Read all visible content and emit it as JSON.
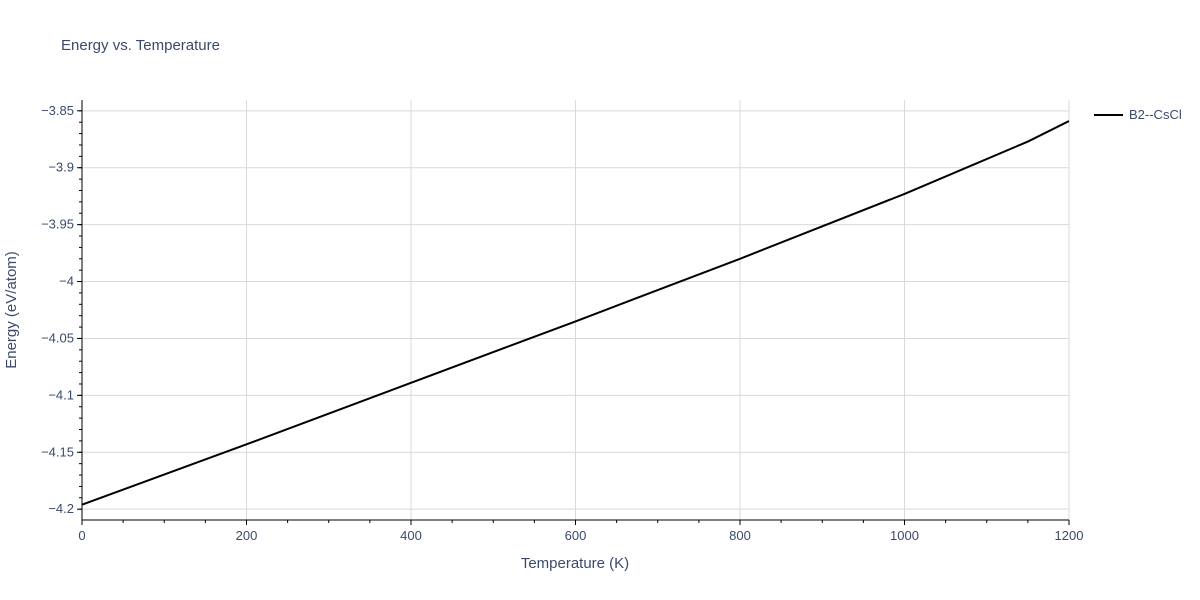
{
  "chart_data": {
    "type": "line",
    "title": "Energy vs. Temperature",
    "xlabel": "Temperature (K)",
    "ylabel": "Energy (eV/atom)",
    "xlim": [
      0,
      1200
    ],
    "ylim": [
      -4.2095,
      -3.8405
    ],
    "x_ticks": [
      0,
      200,
      400,
      600,
      800,
      1000,
      1200
    ],
    "x_tick_labels": [
      "0",
      "200",
      "400",
      "600",
      "800",
      "1000",
      "1200"
    ],
    "y_ticks": [
      -4.2,
      -4.15,
      -4.1,
      -4.05,
      -4.0,
      -3.95,
      -3.9,
      -3.85
    ],
    "y_tick_labels": [
      "−4.2",
      "−4.15",
      "−4.1",
      "−4.05",
      "−4",
      "−3.95",
      "−3.9",
      "−3.85"
    ],
    "grid": true,
    "legend_position": "top-right",
    "series": [
      {
        "name": "B2--CsCl",
        "color": "#000000",
        "x": [
          0,
          200,
          400,
          600,
          800,
          1000,
          1150,
          1200
        ],
        "y": [
          -4.196,
          -4.143,
          -4.089,
          -4.035,
          -3.98,
          -3.923,
          -3.877,
          -3.859
        ]
      }
    ]
  }
}
